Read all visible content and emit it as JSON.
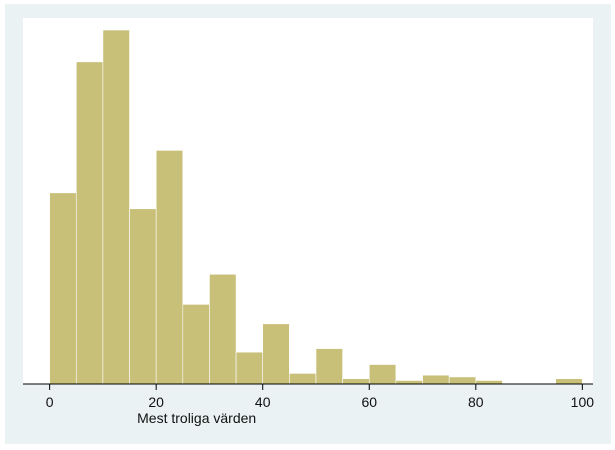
{
  "chart_data": {
    "type": "bar",
    "subtype": "histogram",
    "title": "",
    "xlabel": "Mest troliga värden",
    "ylabel": "",
    "xlim": [
      -5,
      102
    ],
    "ylim": [
      0,
      100
    ],
    "xticks": [
      0,
      20,
      40,
      60,
      80,
      100
    ],
    "bin_width": 5,
    "bins": [
      {
        "start": 0,
        "end": 5,
        "value": 54
      },
      {
        "start": 5,
        "end": 10,
        "value": 91
      },
      {
        "start": 10,
        "end": 15,
        "value": 100
      },
      {
        "start": 15,
        "end": 20,
        "value": 49.5
      },
      {
        "start": 20,
        "end": 25,
        "value": 66
      },
      {
        "start": 25,
        "end": 30,
        "value": 22.5
      },
      {
        "start": 30,
        "end": 35,
        "value": 31
      },
      {
        "start": 35,
        "end": 40,
        "value": 9
      },
      {
        "start": 40,
        "end": 45,
        "value": 17
      },
      {
        "start": 45,
        "end": 50,
        "value": 3
      },
      {
        "start": 50,
        "end": 55,
        "value": 10
      },
      {
        "start": 55,
        "end": 60,
        "value": 1.5
      },
      {
        "start": 60,
        "end": 65,
        "value": 5.5
      },
      {
        "start": 65,
        "end": 70,
        "value": 1
      },
      {
        "start": 70,
        "end": 75,
        "value": 2.5
      },
      {
        "start": 75,
        "end": 80,
        "value": 2
      },
      {
        "start": 80,
        "end": 85,
        "value": 1
      },
      {
        "start": 85,
        "end": 90,
        "value": 0
      },
      {
        "start": 90,
        "end": 95,
        "value": 0
      },
      {
        "start": 95,
        "end": 100,
        "value": 1.5
      }
    ],
    "grid": false,
    "legend": "none",
    "colors": {
      "bar_fill": "#c8bf78",
      "bar_edge": "#ffffff",
      "background": "#eaf2f3",
      "plot_area": "#ffffff",
      "axis": "#000000"
    }
  }
}
